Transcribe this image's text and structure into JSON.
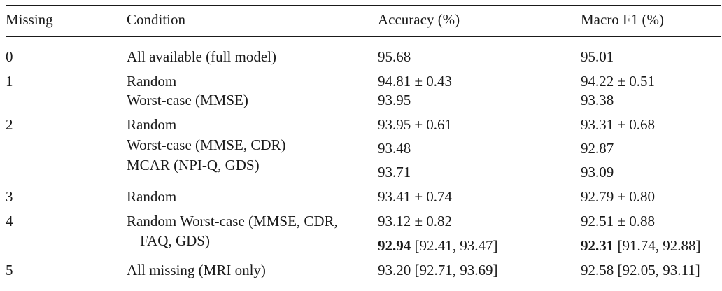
{
  "headers": [
    "Missing",
    "Condition",
    "Accuracy (%)",
    "Macro F1 (%)"
  ],
  "rows": [
    {
      "missing": "0",
      "conditions": [
        "All available (full model)"
      ],
      "acc": [
        "95.68"
      ],
      "f1": [
        "95.01"
      ]
    },
    {
      "missing": "1",
      "conditions": [
        "Random",
        "Worst-case (MMSE)"
      ],
      "acc": [
        "94.81 ± 0.43",
        "93.95"
      ],
      "f1": [
        "94.22 ± 0.51",
        "93.38"
      ]
    },
    {
      "missing": "2",
      "conditions": [
        "Random",
        "Worst-case (MMSE, CDR)",
        "MCAR (NPI-Q, GDS)"
      ],
      "acc": [
        "93.95 ± 0.61",
        "93.48",
        "93.71"
      ],
      "f1": [
        "93.31 ± 0.68",
        "92.87",
        "93.09"
      ]
    },
    {
      "missing": "3",
      "conditions": [
        "Random"
      ],
      "acc": [
        "93.41 ± 0.74"
      ],
      "f1": [
        "92.79 ± 0.80"
      ]
    },
    {
      "missing": "4",
      "conditions": [
        "Random Worst-case (MMSE, CDR,",
        "FAQ, GDS)"
      ],
      "acc": [
        "93.12 ± 0.82"
      ],
      "acc_best": {
        "bold": "92.94",
        "rest": " [92.41, 93.47]"
      },
      "f1": [
        "92.51 ± 0.88"
      ],
      "f1_best": {
        "bold": "92.31",
        "rest": " [91.74, 92.88]"
      }
    },
    {
      "missing": "5",
      "conditions": [
        "All missing (MRI only)"
      ],
      "acc": [
        "93.20 [92.71, 93.69]"
      ],
      "f1": [
        "92.58 [92.05, 93.11]"
      ]
    }
  ]
}
